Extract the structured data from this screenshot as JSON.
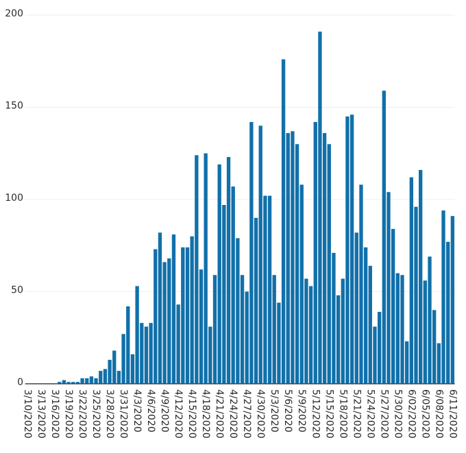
{
  "chart_data": {
    "type": "bar",
    "categories": [
      "3/10/2020",
      null,
      null,
      "3/13/2020",
      null,
      null,
      "3/16/2020",
      null,
      null,
      "3/19/2020",
      null,
      null,
      "3/22/2020",
      null,
      null,
      "3/25/2020",
      null,
      null,
      "3/28/2020",
      null,
      null,
      "3/31/2020",
      null,
      null,
      "4/3/2020",
      null,
      null,
      "4/6/2020",
      null,
      null,
      "4/9/2020",
      null,
      null,
      "4/12/2020",
      null,
      null,
      "4/15/2020",
      null,
      null,
      "4/18/2020",
      null,
      null,
      "4/21/2020",
      null,
      null,
      "4/24/2020",
      null,
      null,
      "4/27/2020",
      null,
      null,
      "4/30/2020",
      null,
      null,
      "5/3/2020",
      null,
      null,
      "5/6/2020",
      null,
      null,
      "5/9/2020",
      null,
      null,
      "5/12/2020",
      null,
      null,
      "5/15/2020",
      null,
      null,
      "5/18/2020",
      null,
      null,
      "5/21/2020",
      null,
      null,
      "5/24/2020",
      null,
      null,
      "5/27/2020",
      null,
      null,
      "5/30/2020",
      null,
      null,
      "6/02/2020",
      null,
      null,
      "6/05/2020",
      null,
      null,
      "6/08/2020",
      null,
      null,
      "6/11/2020"
    ],
    "values": [
      0,
      0,
      0,
      0,
      0,
      0,
      0,
      1,
      2,
      1,
      1,
      1,
      3,
      3,
      4,
      3,
      7,
      8,
      13,
      18,
      7,
      27,
      42,
      16,
      53,
      33,
      31,
      33,
      73,
      82,
      66,
      68,
      81,
      43,
      74,
      74,
      80,
      124,
      62,
      125,
      31,
      59,
      119,
      97,
      123,
      107,
      79,
      59,
      50,
      142,
      90,
      140,
      102,
      102,
      59,
      44,
      176,
      136,
      137,
      130,
      108,
      57,
      53,
      142,
      191,
      136,
      130,
      71,
      48,
      57,
      145,
      146,
      82,
      108,
      74,
      64,
      31,
      39,
      159,
      104,
      84,
      60,
      59,
      23,
      112,
      96,
      116,
      56,
      69,
      40,
      22,
      94,
      77,
      91
    ],
    "color": "#1170aa",
    "ylim": [
      0,
      200
    ],
    "yticks": [
      0,
      50,
      100,
      150,
      200
    ],
    "grid": true
  }
}
